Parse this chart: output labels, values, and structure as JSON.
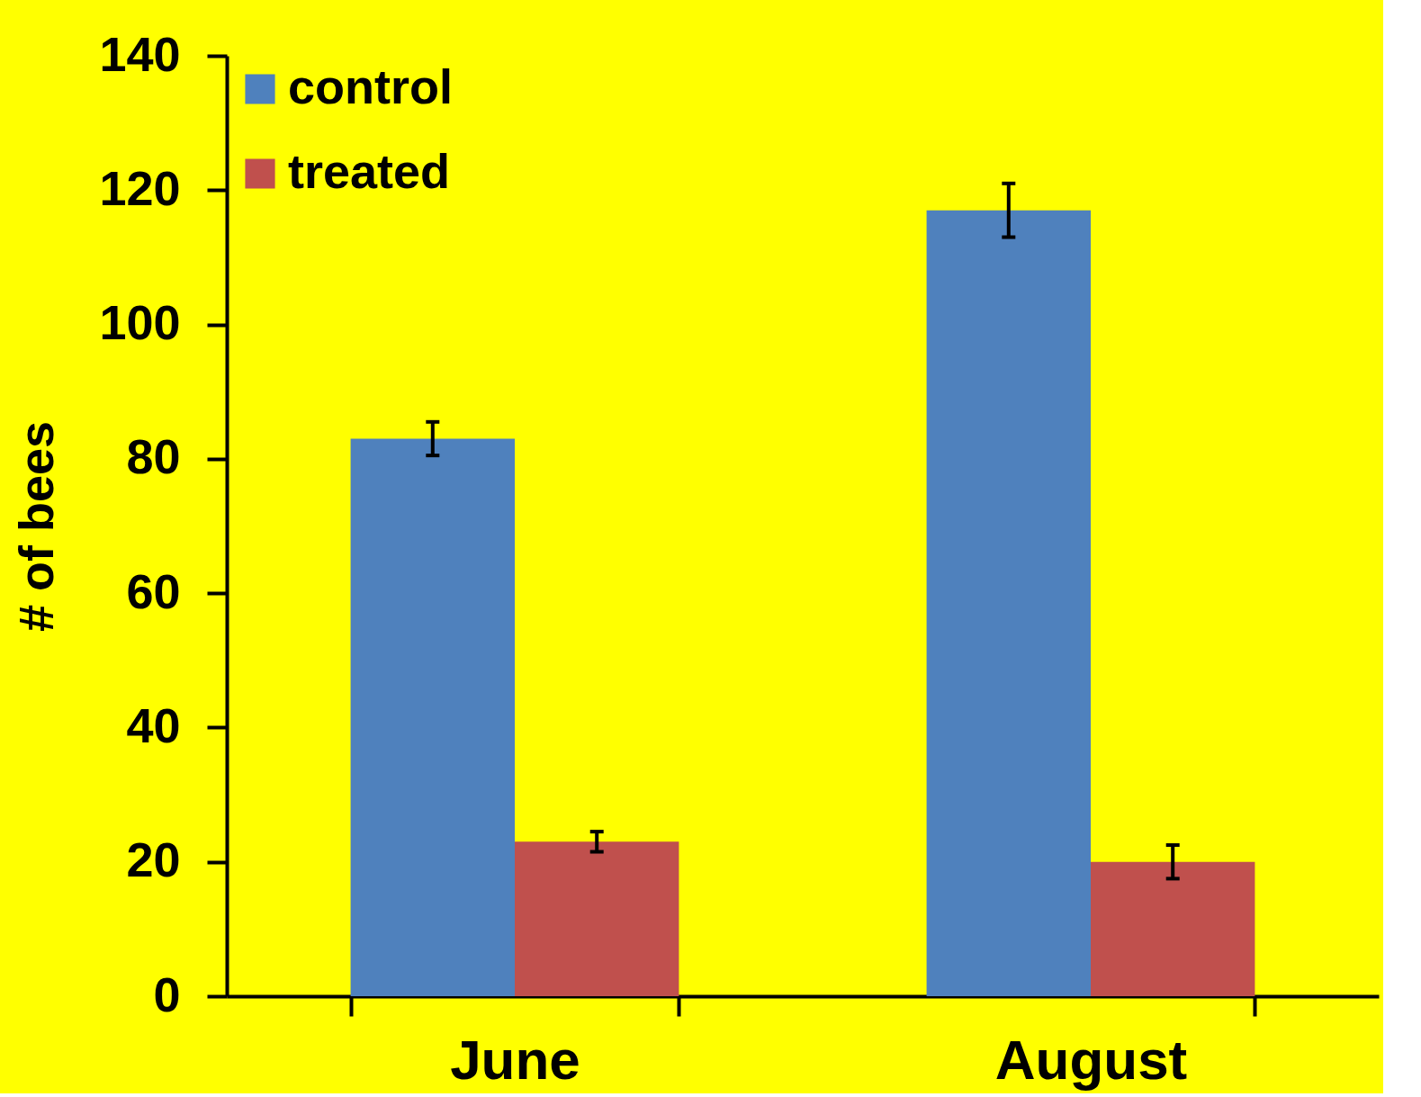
{
  "chart_data": {
    "type": "bar",
    "ylabel": "# of bees",
    "categories": [
      "June",
      "August"
    ],
    "series": [
      {
        "name": "control",
        "color": "#4f81bd",
        "values": [
          83,
          117
        ],
        "errors": [
          2.5,
          4
        ]
      },
      {
        "name": "treated",
        "color": "#c0504d",
        "values": [
          23,
          20
        ],
        "errors": [
          1.5,
          2.5
        ]
      }
    ],
    "ylim": [
      0,
      140
    ],
    "yticks": [
      0,
      20,
      40,
      60,
      80,
      100,
      120,
      140
    ],
    "grid": false,
    "legend": "top left"
  }
}
